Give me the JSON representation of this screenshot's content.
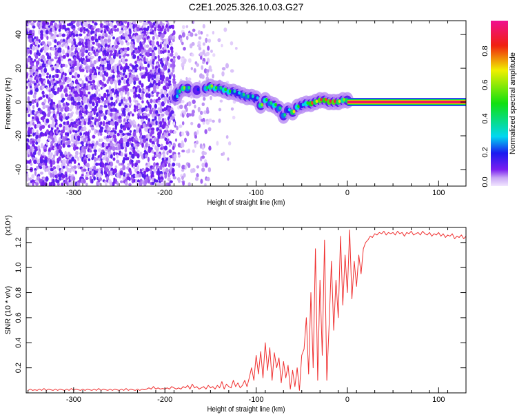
{
  "chart_data": [
    {
      "type": "heatmap",
      "title": "C2E1.2025.326.10.03.G27",
      "xlabel": "Height of straight line (km)",
      "ylabel": "Frequency (Hz)",
      "xlim": [
        -352,
        130
      ],
      "ylim": [
        -49.8,
        48.2
      ],
      "xticks": [
        -300,
        -200,
        -100,
        0,
        100
      ],
      "xtick_labels": [
        "-300",
        "-200",
        "-100",
        "0",
        "100"
      ],
      "yticks": [
        -40,
        -20,
        0,
        20,
        40
      ],
      "ytick_labels": [
        "-40",
        "-20",
        "0",
        "20",
        "40"
      ],
      "colorbar": {
        "label": "Normalized spectral amplitude",
        "range": [
          0,
          0.98
        ],
        "ticks": [
          0.0,
          0.2,
          0.4,
          0.6,
          0.8
        ],
        "tick_labels": [
          "0.0",
          "0.2",
          "0.4",
          "0.6",
          "0.8"
        ]
      },
      "noise_regions": [
        {
          "x": [
            -352,
            -190
          ],
          "f": [
            -49.8,
            48.2
          ],
          "density": 0.55,
          "amp": [
            0.02,
            0.14
          ]
        },
        {
          "x": [
            -190,
            -150
          ],
          "f": [
            -49.8,
            48.2
          ],
          "density": 0.18,
          "amp": [
            0.01,
            0.08
          ]
        },
        {
          "x": [
            -150,
            -120
          ],
          "f": [
            -49.8,
            48.2
          ],
          "density": 0.07,
          "amp": [
            0.01,
            0.05
          ]
        }
      ],
      "signal_track": [
        [
          -188,
          3,
          0.3
        ],
        [
          -185,
          6,
          0.4
        ],
        [
          -180,
          8,
          0.6
        ],
        [
          -175,
          8,
          0.4
        ],
        [
          -165,
          7,
          0.2
        ],
        [
          -155,
          8,
          0.45
        ],
        [
          -150,
          9,
          0.6
        ],
        [
          -145,
          8,
          0.5
        ],
        [
          -140,
          8,
          0.4
        ],
        [
          -135,
          7,
          0.5
        ],
        [
          -130,
          6,
          0.5
        ],
        [
          -125,
          6,
          0.35
        ],
        [
          -120,
          5,
          0.3
        ],
        [
          -115,
          4,
          0.4
        ],
        [
          -110,
          3,
          0.4
        ],
        [
          -105,
          3,
          0.35
        ],
        [
          -100,
          2,
          0.3
        ],
        [
          -95,
          -2,
          0.6
        ],
        [
          -90,
          1,
          0.5
        ],
        [
          -85,
          -1,
          0.4
        ],
        [
          -80,
          -2,
          0.5
        ],
        [
          -75,
          -4,
          0.4
        ],
        [
          -70,
          -8,
          0.4
        ],
        [
          -65,
          -5,
          0.3
        ],
        [
          -60,
          -6,
          0.7
        ],
        [
          -55,
          -3,
          0.5
        ],
        [
          -50,
          -2,
          0.3
        ],
        [
          -45,
          -1,
          0.5
        ],
        [
          -40,
          -1,
          0.8
        ],
        [
          -35,
          0,
          0.7
        ],
        [
          -30,
          1,
          0.9
        ],
        [
          -25,
          1,
          0.8
        ],
        [
          -20,
          0,
          0.9
        ],
        [
          -15,
          0,
          0.9
        ],
        [
          -10,
          0,
          0.7
        ],
        [
          -5,
          1,
          0.6
        ],
        [
          0,
          1,
          0.7
        ]
      ],
      "carrier": {
        "x": [
          0,
          130
        ],
        "f": 0,
        "amp": 0.95
      }
    },
    {
      "type": "line",
      "xlabel": "Height of straight line (km)",
      "ylabel": "SNR (10 * v/v)",
      "y_scale_label": "(x10⁴)",
      "xlim": [
        -352,
        130
      ],
      "ylim": [
        0,
        1.32
      ],
      "xticks": [
        -300,
        -200,
        -100,
        0,
        100
      ],
      "xtick_labels": [
        "-300",
        "-200",
        "-100",
        "0",
        "100"
      ],
      "yticks": [
        0.2,
        0.4,
        0.6,
        0.8,
        1.0,
        1.2
      ],
      "ytick_labels": [
        "0.2",
        "0.4",
        "0.6",
        "0.8",
        "1.0",
        "1.2"
      ],
      "color": "#f03030",
      "series": [
        {
          "name": "SNR",
          "x_start": -350,
          "x_step": 2.5,
          "values": [
            0.02,
            0.03,
            0.02,
            0.025,
            0.02,
            0.03,
            0.02,
            0.035,
            0.02,
            0.03,
            0.025,
            0.02,
            0.03,
            0.02,
            0.03,
            0.025,
            0.02,
            0.03,
            0.02,
            0.035,
            0.02,
            0.03,
            0.025,
            0.02,
            0.03,
            0.02,
            0.03,
            0.025,
            0.02,
            0.03,
            0.02,
            0.035,
            0.02,
            0.03,
            0.025,
            0.02,
            0.03,
            0.02,
            0.03,
            0.025,
            0.02,
            0.03,
            0.02,
            0.035,
            0.02,
            0.03,
            0.025,
            0.02,
            0.03,
            0.02,
            0.03,
            0.025,
            0.03,
            0.04,
            0.03,
            0.05,
            0.03,
            0.04,
            0.03,
            0.035,
            0.03,
            0.04,
            0.03,
            0.05,
            0.04,
            0.03,
            0.04,
            0.03,
            0.05,
            0.04,
            0.06,
            0.03,
            0.07,
            0.04,
            0.05,
            0.03,
            0.04,
            0.05,
            0.03,
            0.06,
            0.04,
            0.05,
            0.03,
            0.06,
            0.04,
            0.09,
            0.03,
            0.07,
            0.05,
            0.04,
            0.1,
            0.05,
            0.08,
            0.04,
            0.06,
            0.1,
            0.05,
            0.12,
            0.2,
            0.1,
            0.3,
            0.15,
            0.33,
            0.12,
            0.4,
            0.18,
            0.36,
            0.1,
            0.32,
            0.2,
            0.28,
            0.08,
            0.25,
            0.12,
            0.22,
            0.03,
            0.18,
            0.05,
            0.2,
            0.02,
            0.3,
            0.35,
            0.6,
            0.15,
            0.8,
            0.2,
            1.15,
            0.1,
            0.9,
            0.3,
            1.22,
            0.1,
            0.55,
            1.05,
            0.5,
            0.9,
            0.6,
            1.25,
            0.7,
            1.1,
            0.8,
            1.3,
            0.75,
            1.05,
            0.85,
            1.1,
            0.95,
            1.15,
            1.2,
            1.22,
            1.25,
            1.24,
            1.27,
            1.26,
            1.28,
            1.27,
            1.29,
            1.26,
            1.28,
            1.27,
            1.28,
            1.26,
            1.29,
            1.27,
            1.28,
            1.25,
            1.28,
            1.27,
            1.29,
            1.26,
            1.27,
            1.28,
            1.26,
            1.29,
            1.27,
            1.26,
            1.28,
            1.25,
            1.27,
            1.26,
            1.28,
            1.25,
            1.27,
            1.24,
            1.26,
            1.25,
            1.27,
            1.23,
            1.25,
            1.24,
            1.26,
            1.23,
            1.25,
            1.24
          ]
        }
      ]
    }
  ]
}
